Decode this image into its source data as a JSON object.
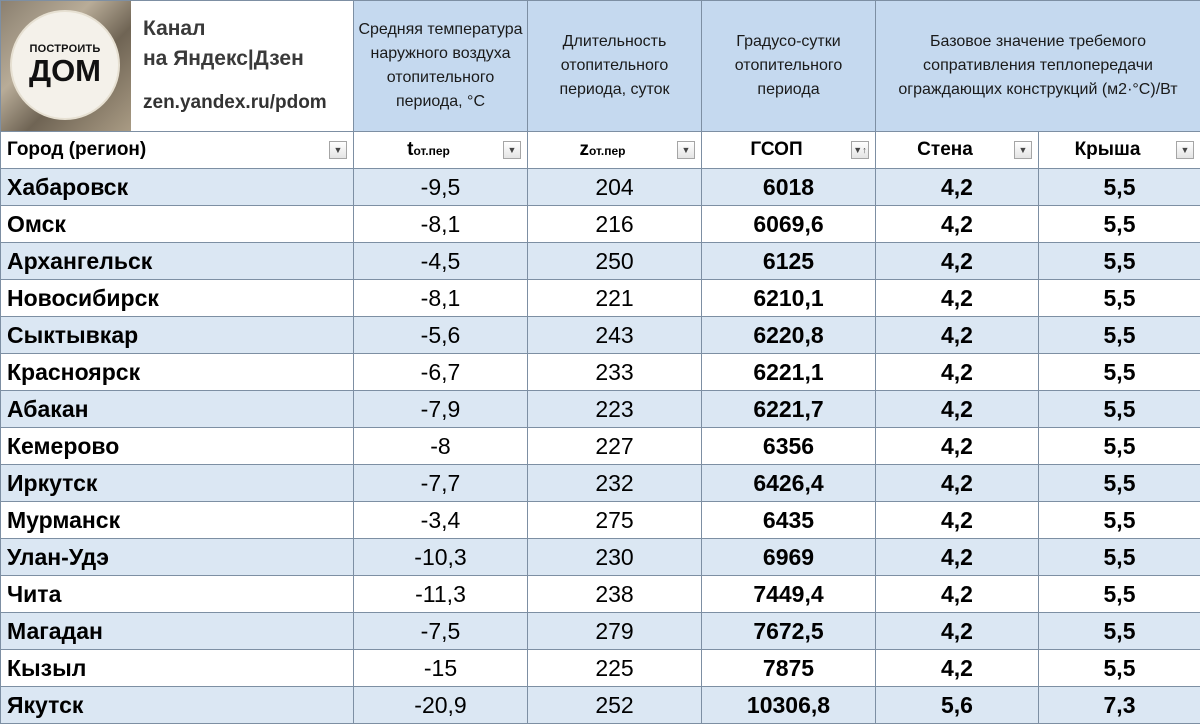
{
  "brand": {
    "logo_line1": "ПОСТРОИТЬ",
    "logo_line2": "ДОМ",
    "channel_line1": "Канал",
    "channel_line2": "на Яндекс|Дзен",
    "url": "zen.yandex.ru/pdom"
  },
  "header": {
    "temp_desc": "Средняя температура наружного воздуха отопительного периода, °C",
    "duration_desc": "Длительность отопительного периода, суток",
    "gsop_desc": "Градусо-сутки отопительного периода",
    "resistance_desc": "Базовое значение требемого сопративления теплопередачи ограждающих конструкций (м2·°C)/Вт"
  },
  "columns": {
    "city": "Город (регион)",
    "temp_main": "t",
    "temp_sub": "от.пер",
    "dur_main": "z",
    "dur_sub": "от.пер",
    "gsop": "ГСОП",
    "wall": "Стена",
    "roof": "Крыша"
  },
  "rows": [
    {
      "city": "Хабаровск",
      "t": "-9,5",
      "z": "204",
      "gsop": "6018",
      "wall": "4,2",
      "roof": "5,5"
    },
    {
      "city": "Омск",
      "t": "-8,1",
      "z": "216",
      "gsop": "6069,6",
      "wall": "4,2",
      "roof": "5,5"
    },
    {
      "city": "Архангельск",
      "t": "-4,5",
      "z": "250",
      "gsop": "6125",
      "wall": "4,2",
      "roof": "5,5"
    },
    {
      "city": "Новосибирск",
      "t": "-8,1",
      "z": "221",
      "gsop": "6210,1",
      "wall": "4,2",
      "roof": "5,5"
    },
    {
      "city": "Сыктывкар",
      "t": "-5,6",
      "z": "243",
      "gsop": "6220,8",
      "wall": "4,2",
      "roof": "5,5"
    },
    {
      "city": "Красноярск",
      "t": "-6,7",
      "z": "233",
      "gsop": "6221,1",
      "wall": "4,2",
      "roof": "5,5"
    },
    {
      "city": "Абакан",
      "t": "-7,9",
      "z": "223",
      "gsop": "6221,7",
      "wall": "4,2",
      "roof": "5,5"
    },
    {
      "city": "Кемерово",
      "t": "-8",
      "z": "227",
      "gsop": "6356",
      "wall": "4,2",
      "roof": "5,5"
    },
    {
      "city": "Иркутск",
      "t": "-7,7",
      "z": "232",
      "gsop": "6426,4",
      "wall": "4,2",
      "roof": "5,5"
    },
    {
      "city": "Мурманск",
      "t": "-3,4",
      "z": "275",
      "gsop": "6435",
      "wall": "4,2",
      "roof": "5,5"
    },
    {
      "city": "Улан-Удэ",
      "t": "-10,3",
      "z": "230",
      "gsop": "6969",
      "wall": "4,2",
      "roof": "5,5"
    },
    {
      "city": "Чита",
      "t": "-11,3",
      "z": "238",
      "gsop": "7449,4",
      "wall": "4,2",
      "roof": "5,5"
    },
    {
      "city": "Магадан",
      "t": "-7,5",
      "z": "279",
      "gsop": "7672,5",
      "wall": "4,2",
      "roof": "5,5"
    },
    {
      "city": "Кызыл",
      "t": "-15",
      "z": "225",
      "gsop": "7875",
      "wall": "4,2",
      "roof": "5,5"
    },
    {
      "city": "Якутск",
      "t": "-20,9",
      "z": "252",
      "gsop": "10306,8",
      "wall": "5,6",
      "roof": "7,3"
    }
  ],
  "icons": {
    "filter_dropdown": "▼",
    "sort_dropdown": "▼↑"
  },
  "colors": {
    "header_bg": "#c5d9ef",
    "band_bg": "#dbe7f3",
    "grid": "#7d8fa3"
  }
}
